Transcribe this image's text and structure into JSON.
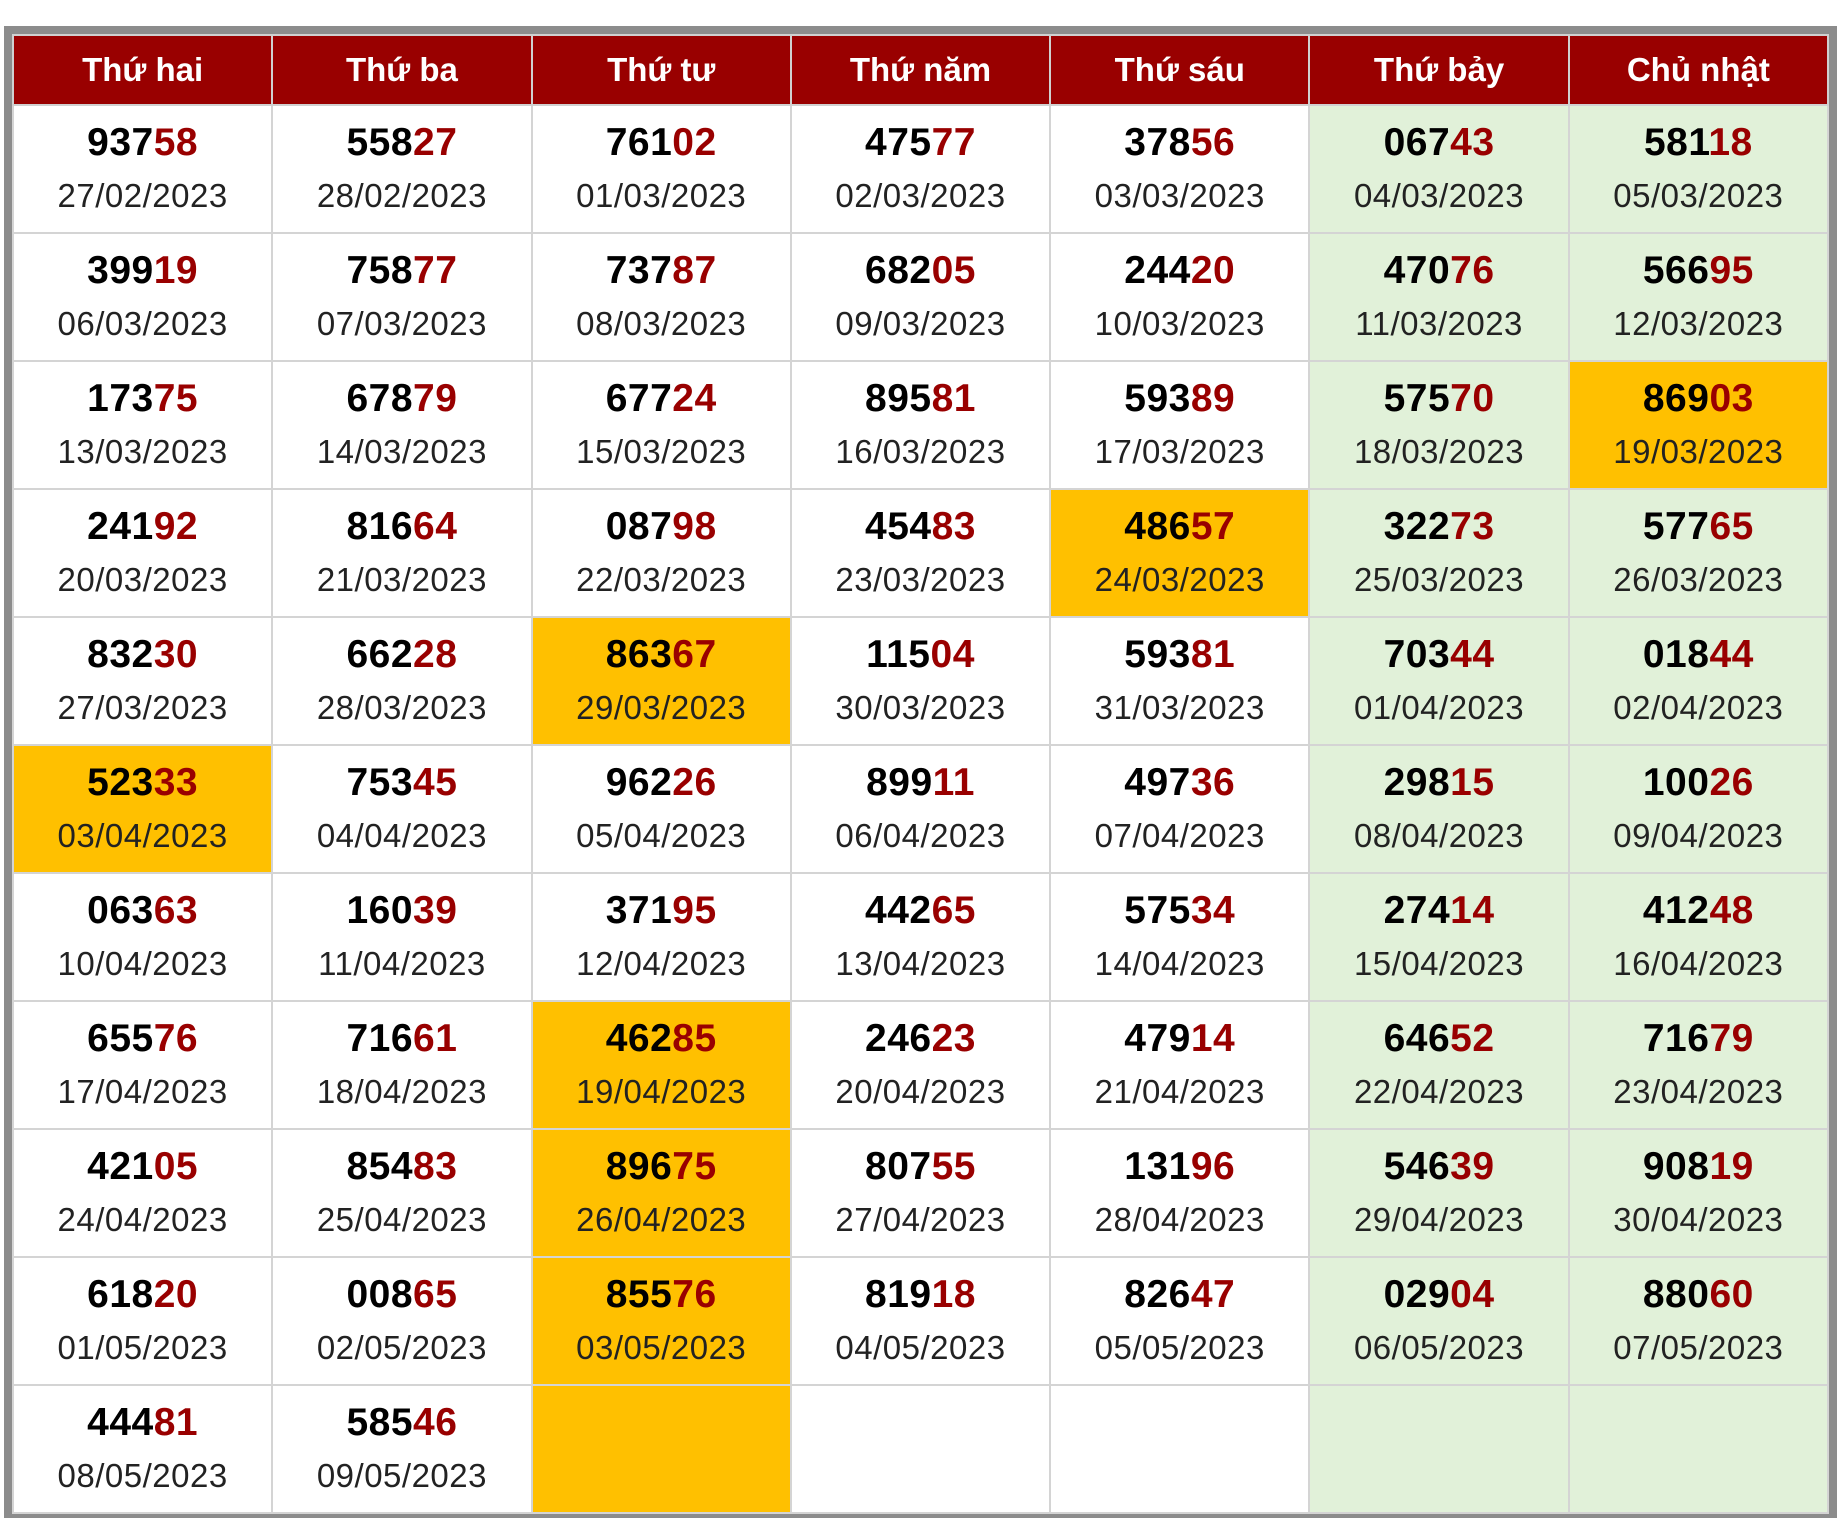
{
  "colors": {
    "header_bg": "#990000",
    "header_text": "#ffffff",
    "tail_digits": "#990000",
    "weekend_bg": "#e1f1d9",
    "highlight_bg": "#ffc000",
    "frame": "#8c8c8c"
  },
  "headers": [
    "Thứ hai",
    "Thứ ba",
    "Thứ tư",
    "Thứ năm",
    "Thứ sáu",
    "Thứ bảy",
    "Chủ nhật"
  ],
  "rows": [
    [
      {
        "head": "937",
        "tail": "58",
        "date": "27/02/2023"
      },
      {
        "head": "558",
        "tail": "27",
        "date": "28/02/2023"
      },
      {
        "head": "761",
        "tail": "02",
        "date": "01/03/2023"
      },
      {
        "head": "475",
        "tail": "77",
        "date": "02/03/2023"
      },
      {
        "head": "378",
        "tail": "56",
        "date": "03/03/2023"
      },
      {
        "head": "067",
        "tail": "43",
        "date": "04/03/2023"
      },
      {
        "head": "581",
        "tail": "18",
        "date": "05/03/2023"
      }
    ],
    [
      {
        "head": "399",
        "tail": "19",
        "date": "06/03/2023"
      },
      {
        "head": "758",
        "tail": "77",
        "date": "07/03/2023"
      },
      {
        "head": "737",
        "tail": "87",
        "date": "08/03/2023"
      },
      {
        "head": "682",
        "tail": "05",
        "date": "09/03/2023"
      },
      {
        "head": "244",
        "tail": "20",
        "date": "10/03/2023"
      },
      {
        "head": "470",
        "tail": "76",
        "date": "11/03/2023"
      },
      {
        "head": "566",
        "tail": "95",
        "date": "12/03/2023"
      }
    ],
    [
      {
        "head": "173",
        "tail": "75",
        "date": "13/03/2023"
      },
      {
        "head": "678",
        "tail": "79",
        "date": "14/03/2023"
      },
      {
        "head": "677",
        "tail": "24",
        "date": "15/03/2023"
      },
      {
        "head": "895",
        "tail": "81",
        "date": "16/03/2023"
      },
      {
        "head": "593",
        "tail": "89",
        "date": "17/03/2023"
      },
      {
        "head": "575",
        "tail": "70",
        "date": "18/03/2023"
      },
      {
        "head": "869",
        "tail": "03",
        "date": "19/03/2023",
        "highlight": true
      }
    ],
    [
      {
        "head": "241",
        "tail": "92",
        "date": "20/03/2023"
      },
      {
        "head": "816",
        "tail": "64",
        "date": "21/03/2023"
      },
      {
        "head": "087",
        "tail": "98",
        "date": "22/03/2023"
      },
      {
        "head": "454",
        "tail": "83",
        "date": "23/03/2023"
      },
      {
        "head": "486",
        "tail": "57",
        "date": "24/03/2023",
        "highlight": true
      },
      {
        "head": "322",
        "tail": "73",
        "date": "25/03/2023"
      },
      {
        "head": "577",
        "tail": "65",
        "date": "26/03/2023"
      }
    ],
    [
      {
        "head": "832",
        "tail": "30",
        "date": "27/03/2023"
      },
      {
        "head": "662",
        "tail": "28",
        "date": "28/03/2023"
      },
      {
        "head": "863",
        "tail": "67",
        "date": "29/03/2023",
        "highlight": true
      },
      {
        "head": "115",
        "tail": "04",
        "date": "30/03/2023"
      },
      {
        "head": "593",
        "tail": "81",
        "date": "31/03/2023"
      },
      {
        "head": "703",
        "tail": "44",
        "date": "01/04/2023"
      },
      {
        "head": "018",
        "tail": "44",
        "date": "02/04/2023"
      }
    ],
    [
      {
        "head": "523",
        "tail": "33",
        "date": "03/04/2023",
        "highlight": true
      },
      {
        "head": "753",
        "tail": "45",
        "date": "04/04/2023"
      },
      {
        "head": "962",
        "tail": "26",
        "date": "05/04/2023"
      },
      {
        "head": "899",
        "tail": "11",
        "date": "06/04/2023"
      },
      {
        "head": "497",
        "tail": "36",
        "date": "07/04/2023"
      },
      {
        "head": "298",
        "tail": "15",
        "date": "08/04/2023"
      },
      {
        "head": "100",
        "tail": "26",
        "date": "09/04/2023"
      }
    ],
    [
      {
        "head": "063",
        "tail": "63",
        "date": "10/04/2023"
      },
      {
        "head": "160",
        "tail": "39",
        "date": "11/04/2023"
      },
      {
        "head": "371",
        "tail": "95",
        "date": "12/04/2023"
      },
      {
        "head": "442",
        "tail": "65",
        "date": "13/04/2023"
      },
      {
        "head": "575",
        "tail": "34",
        "date": "14/04/2023"
      },
      {
        "head": "274",
        "tail": "14",
        "date": "15/04/2023"
      },
      {
        "head": "412",
        "tail": "48",
        "date": "16/04/2023"
      }
    ],
    [
      {
        "head": "655",
        "tail": "76",
        "date": "17/04/2023"
      },
      {
        "head": "716",
        "tail": "61",
        "date": "18/04/2023"
      },
      {
        "head": "462",
        "tail": "85",
        "date": "19/04/2023",
        "highlight": true
      },
      {
        "head": "246",
        "tail": "23",
        "date": "20/04/2023"
      },
      {
        "head": "479",
        "tail": "14",
        "date": "21/04/2023"
      },
      {
        "head": "646",
        "tail": "52",
        "date": "22/04/2023"
      },
      {
        "head": "716",
        "tail": "79",
        "date": "23/04/2023"
      }
    ],
    [
      {
        "head": "421",
        "tail": "05",
        "date": "24/04/2023"
      },
      {
        "head": "854",
        "tail": "83",
        "date": "25/04/2023"
      },
      {
        "head": "896",
        "tail": "75",
        "date": "26/04/2023",
        "highlight": true
      },
      {
        "head": "807",
        "tail": "55",
        "date": "27/04/2023"
      },
      {
        "head": "131",
        "tail": "96",
        "date": "28/04/2023"
      },
      {
        "head": "546",
        "tail": "39",
        "date": "29/04/2023"
      },
      {
        "head": "908",
        "tail": "19",
        "date": "30/04/2023"
      }
    ],
    [
      {
        "head": "618",
        "tail": "20",
        "date": "01/05/2023"
      },
      {
        "head": "008",
        "tail": "65",
        "date": "02/05/2023"
      },
      {
        "head": "855",
        "tail": "76",
        "date": "03/05/2023",
        "highlight": true
      },
      {
        "head": "819",
        "tail": "18",
        "date": "04/05/2023"
      },
      {
        "head": "826",
        "tail": "47",
        "date": "05/05/2023"
      },
      {
        "head": "029",
        "tail": "04",
        "date": "06/05/2023"
      },
      {
        "head": "880",
        "tail": "60",
        "date": "07/05/2023"
      }
    ],
    [
      {
        "head": "444",
        "tail": "81",
        "date": "08/05/2023"
      },
      {
        "head": "585",
        "tail": "46",
        "date": "09/05/2023"
      },
      {
        "highlight": true
      },
      {},
      {},
      {},
      {}
    ]
  ]
}
